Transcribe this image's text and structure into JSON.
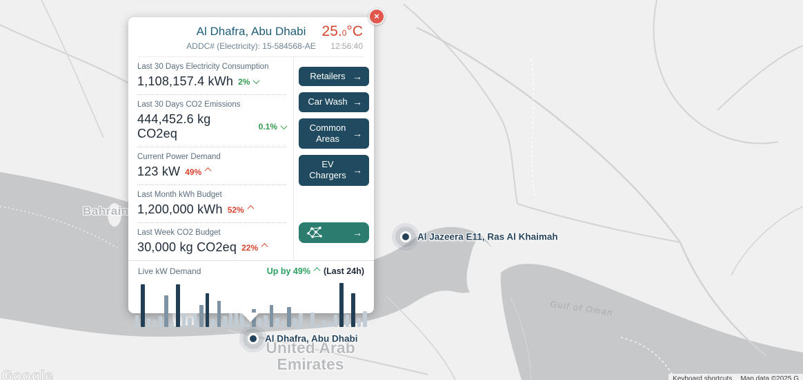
{
  "map": {
    "labels": {
      "bahrain": "Bahrain",
      "country_line1": "United Arab",
      "country_line2": "Emirates",
      "gulf": "Gulf of Oman",
      "google": "Google",
      "attribution_left": "Keyboard shortcuts",
      "attribution_right": "Map data ©2025 G"
    },
    "markers": {
      "rak": "Al Jazeera E11, Ras Al Khaimah",
      "dhafra": "Al Dhafra, Abu Dhabi"
    }
  },
  "card": {
    "title": "Al Dhafra, Abu Dhabi",
    "subtitle": "ADDC# (Electricity): 15-584568-AE",
    "temperature": {
      "main": "25.",
      "decimal": "0",
      "unit": "°C"
    },
    "time": "12:56:40",
    "metrics": [
      {
        "label": "Last 30 Days Electricity Consumption",
        "value": "1,108,157.4 kWh",
        "pct": "2%",
        "direction": "down",
        "color": "#339c4e"
      },
      {
        "label": "Last 30 Days CO2 Emissions",
        "value": "444,452.6 kg CO2eq",
        "pct": "0.1%",
        "direction": "down",
        "color": "#339c4e"
      },
      {
        "label": "Current Power Demand",
        "value": "123 kW",
        "pct": "49%",
        "direction": "up",
        "color": "#d8442e"
      },
      {
        "label": "Last Month kWh Budget",
        "value": "1,200,000 kWh",
        "pct": "52%",
        "direction": "up",
        "color": "#d8442e"
      },
      {
        "label": "Last Week CO2 Budget",
        "value": "30,000 kg CO2eq",
        "pct": "22%",
        "direction": "up",
        "color": "#d8442e"
      }
    ],
    "buttons": [
      {
        "label": "Retailers"
      },
      {
        "label": "Car Wash"
      },
      {
        "label": "Common Areas"
      },
      {
        "label": "EV Chargers"
      }
    ],
    "live": {
      "label": "Live kW Demand",
      "trend": "Up by 49%",
      "suffix": "(Last 24h)"
    }
  },
  "ui": {
    "arrow": "→",
    "close": "×"
  },
  "chart_data": {
    "type": "bar",
    "title": "Live kW Demand",
    "subtitle": "Up by 49% (Last 24h)",
    "xlabel": "",
    "ylabel": "",
    "axis_labels_visible": false,
    "note": "24h live demand sparkline; values are relative bar heights (px), no numeric axis shown",
    "values": [
      17,
      62,
      13,
      10,
      16,
      46,
      7,
      62,
      20,
      13,
      20,
      32,
      49,
      11,
      38,
      16,
      20,
      20,
      20,
      4,
      26,
      13,
      17,
      32,
      13,
      10,
      29,
      13,
      20,
      4,
      21,
      4,
      10,
      7,
      18,
      64,
      18,
      49,
      13,
      23
    ],
    "colors": [
      "light",
      "dark",
      "light",
      "light",
      "light",
      "mid",
      "light",
      "dark",
      "light",
      "light",
      "light",
      "mid",
      "dark",
      "light",
      "mid",
      "light",
      "light",
      "light",
      "light",
      "light",
      "mid",
      "light",
      "light",
      "mid",
      "light",
      "light",
      "mid",
      "light",
      "light",
      "light",
      "light",
      "light",
      "light",
      "light",
      "light",
      "dark",
      "light",
      "dark",
      "light",
      "light"
    ],
    "palette": {
      "light": "#c2ccd4",
      "mid": "#7e94a4",
      "dark": "#223f55"
    }
  },
  "colors": {
    "accent_navy": "#1f4a5f",
    "accent_teal": "#2d7c70",
    "temp_red": "#d6452f",
    "close_red": "#e2574d",
    "trend_green": "#339c4e",
    "trend_red": "#d8442e",
    "live_green": "#2aa061",
    "sea": "#c6c8ca",
    "land": "#f0f0f1"
  }
}
